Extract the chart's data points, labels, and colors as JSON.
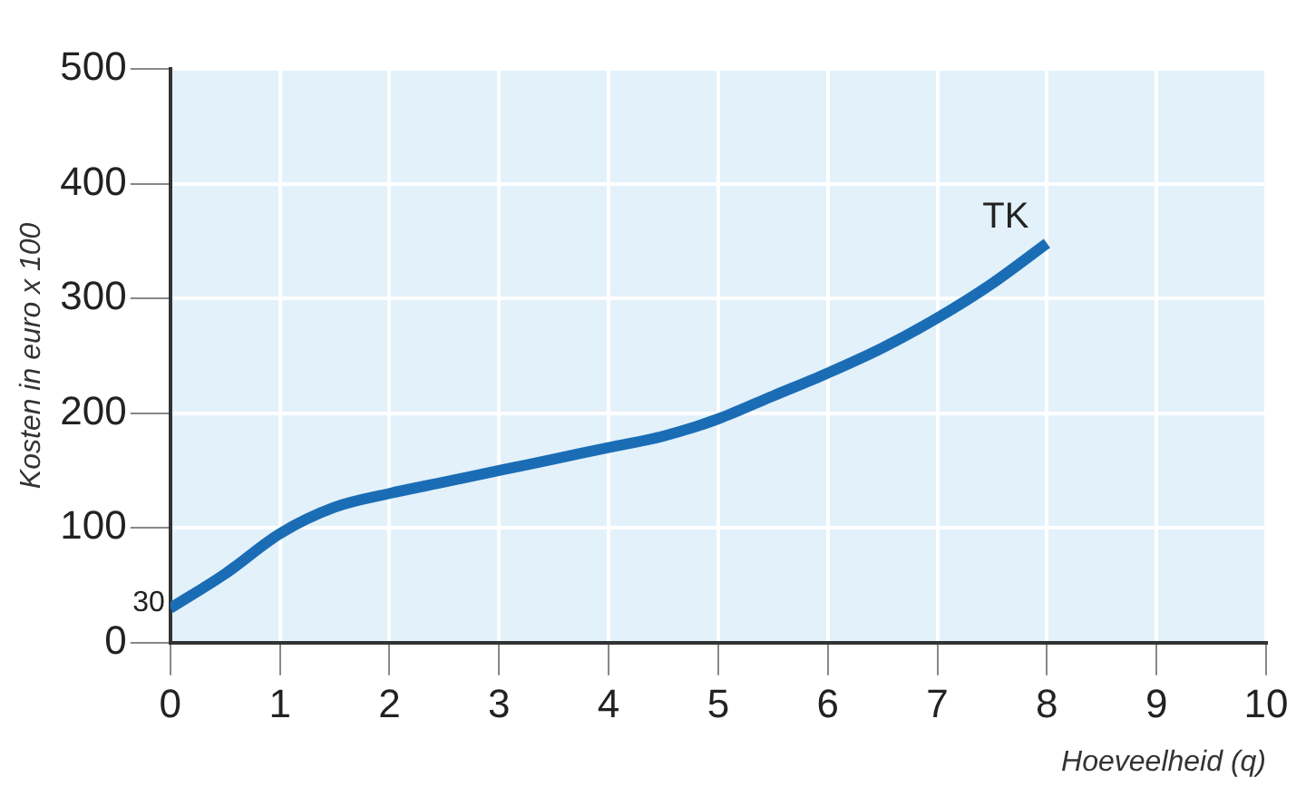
{
  "chart_data": {
    "type": "line",
    "xlabel": "Hoeveelheid (q)",
    "ylabel": "Kosten in euro x 100",
    "x": [
      0,
      0.5,
      1,
      1.5,
      2,
      2.5,
      3,
      3.5,
      4,
      4.5,
      5,
      5.5,
      6,
      6.5,
      7,
      7.5,
      8
    ],
    "series": [
      {
        "name": "TK",
        "color": "#1a6db5",
        "values": [
          30,
          60,
          95,
          118,
          130,
          140,
          150,
          160,
          170,
          180,
          195,
          215,
          235,
          257,
          283,
          313,
          348
        ]
      }
    ],
    "xlim": [
      0,
      10
    ],
    "xticks": [
      0,
      1,
      2,
      3,
      4,
      5,
      6,
      7,
      8,
      9,
      10
    ],
    "ylim": [
      0,
      500
    ],
    "yticks": [
      0,
      100,
      200,
      300,
      400,
      500
    ],
    "annotations": [
      {
        "text": "30",
        "x": 0,
        "y": 30
      }
    ],
    "grid": true,
    "legend": false,
    "marker": "none",
    "line_style": "solid"
  }
}
